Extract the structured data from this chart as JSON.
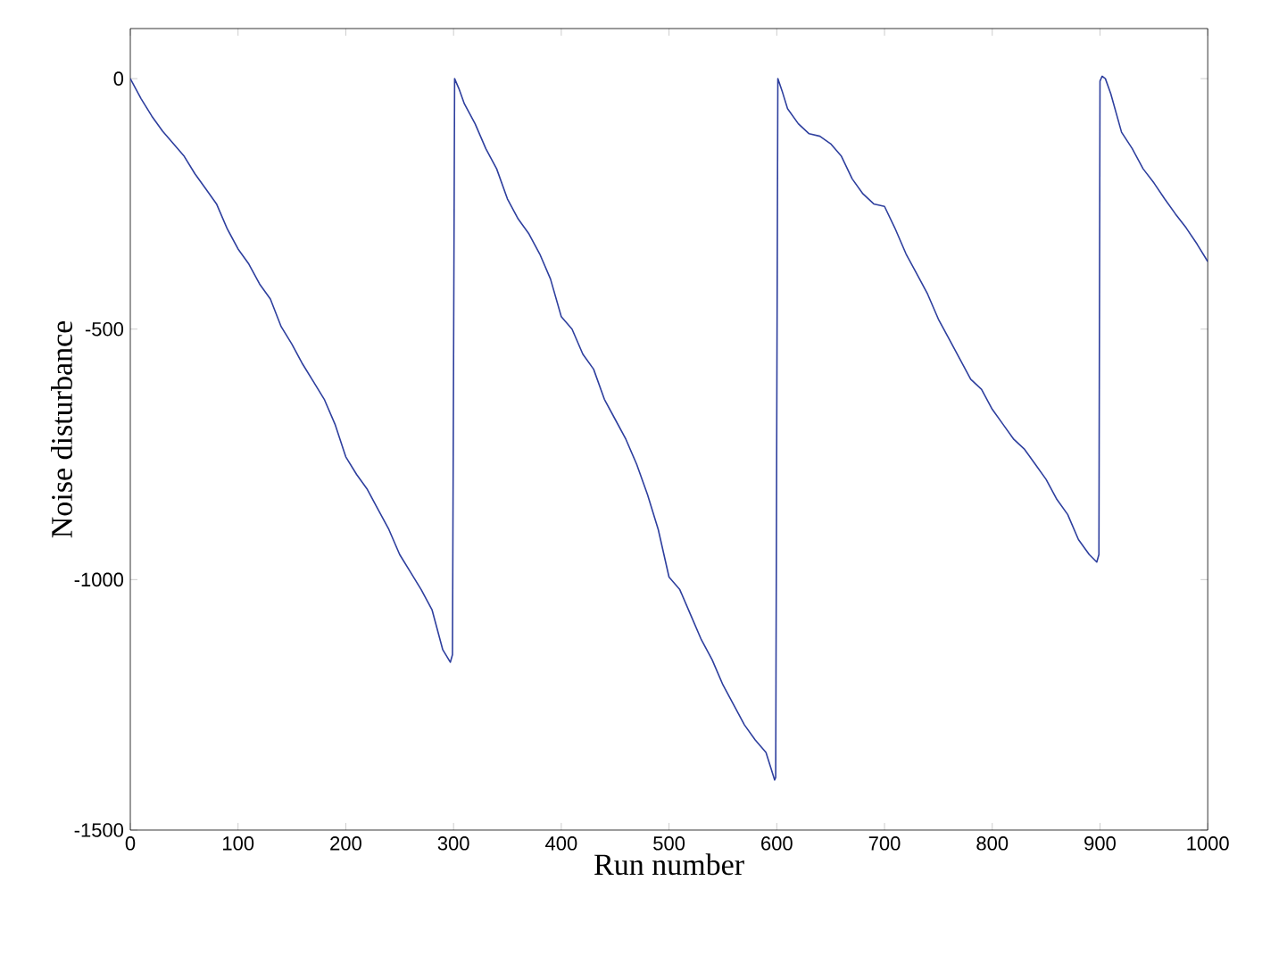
{
  "chart_data": {
    "type": "line",
    "xlabel": "Run number",
    "ylabel": "Noise disturbance",
    "xlim": [
      0,
      1000
    ],
    "ylim": [
      -1500,
      100
    ],
    "xticks": [
      0,
      100,
      200,
      300,
      400,
      500,
      600,
      700,
      800,
      900,
      1000
    ],
    "yticks": [
      -1500,
      -1000,
      -500,
      0
    ],
    "grid": false,
    "marker": "none",
    "line_style": "solid",
    "series": [
      {
        "color": "#2e3f9e",
        "x": [
          0,
          10,
          20,
          30,
          40,
          50,
          60,
          70,
          80,
          90,
          100,
          110,
          120,
          130,
          140,
          150,
          160,
          170,
          180,
          190,
          200,
          210,
          220,
          230,
          240,
          250,
          260,
          270,
          280,
          290,
          297,
          299,
          300,
          301,
          305,
          310,
          320,
          330,
          340,
          350,
          360,
          370,
          380,
          390,
          400,
          410,
          420,
          430,
          440,
          450,
          460,
          470,
          480,
          490,
          500,
          510,
          520,
          530,
          540,
          550,
          560,
          570,
          580,
          590,
          598,
          599,
          600,
          601,
          605,
          610,
          620,
          630,
          640,
          650,
          660,
          670,
          680,
          690,
          700,
          710,
          720,
          730,
          740,
          750,
          760,
          770,
          780,
          790,
          800,
          810,
          820,
          830,
          840,
          850,
          860,
          870,
          880,
          890,
          897,
          899,
          900,
          902,
          905,
          910,
          920,
          930,
          940,
          950,
          960,
          970,
          980,
          990,
          1000
        ],
        "values": [
          0,
          -40,
          -75,
          -105,
          -130,
          -155,
          -190,
          -220,
          -250,
          -300,
          -340,
          -370,
          -410,
          -440,
          -495,
          -530,
          -570,
          -605,
          -640,
          -690,
          -755,
          -790,
          -820,
          -860,
          -900,
          -950,
          -985,
          -1020,
          -1060,
          -1140,
          -1165,
          -1150,
          -580,
          0,
          -20,
          -50,
          -90,
          -140,
          -180,
          -240,
          -280,
          -310,
          -350,
          -400,
          -475,
          -500,
          -550,
          -580,
          -640,
          -680,
          -720,
          -770,
          -830,
          -900,
          -995,
          -1020,
          -1070,
          -1120,
          -1160,
          -1210,
          -1250,
          -1290,
          -1320,
          -1345,
          -1400,
          -1395,
          -680,
          0,
          -25,
          -60,
          -90,
          -110,
          -115,
          -130,
          -155,
          -200,
          -230,
          -250,
          -255,
          -300,
          -350,
          -390,
          -430,
          -480,
          -520,
          -560,
          -600,
          -620,
          -660,
          -690,
          -720,
          -740,
          -770,
          -800,
          -840,
          -870,
          -920,
          -950,
          -965,
          -950,
          -5,
          5,
          0,
          -30,
          -107,
          -140,
          -180,
          -208,
          -240,
          -270,
          -298,
          -330,
          -365
        ]
      }
    ]
  }
}
